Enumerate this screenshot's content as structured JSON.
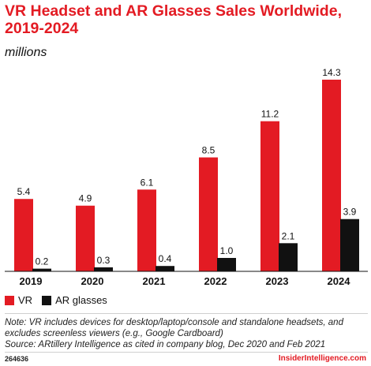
{
  "header": {
    "title": "VR Headset and AR Glasses Sales Worldwide, 2019-2024",
    "subtitle": "millions"
  },
  "colors": {
    "vr": "#e31b23",
    "ar": "#111111",
    "accent": "#e31b23"
  },
  "chart_data": {
    "type": "bar",
    "title": "VR Headset and AR Glasses Sales Worldwide, 2019-2024",
    "subtitle": "millions",
    "categories": [
      "2019",
      "2020",
      "2021",
      "2022",
      "2023",
      "2024"
    ],
    "series": [
      {
        "name": "VR",
        "values": [
          5.4,
          4.9,
          6.1,
          8.5,
          11.2,
          14.3
        ],
        "labels": [
          "5.4",
          "4.9",
          "6.1",
          "8.5",
          "11.2",
          "14.3"
        ]
      },
      {
        "name": "AR glasses",
        "values": [
          0.2,
          0.3,
          0.4,
          1.0,
          2.1,
          3.9
        ],
        "labels": [
          "0.2",
          "0.3",
          "0.4",
          "1.0",
          "2.1",
          "3.9"
        ]
      }
    ],
    "ylim": [
      0,
      14.3
    ],
    "grid": false,
    "legend_position": "bottom-left"
  },
  "footer": {
    "note": "Note: VR includes devices for desktop/laptop/console and standalone headsets, and excludes screenless viewers (e.g., Google Cardboard)",
    "source": "Source: ARtillery Intelligence as cited in company blog, Dec 2020 and Feb 2021",
    "code": "264636",
    "brand": "InsiderIntelligence.com"
  }
}
